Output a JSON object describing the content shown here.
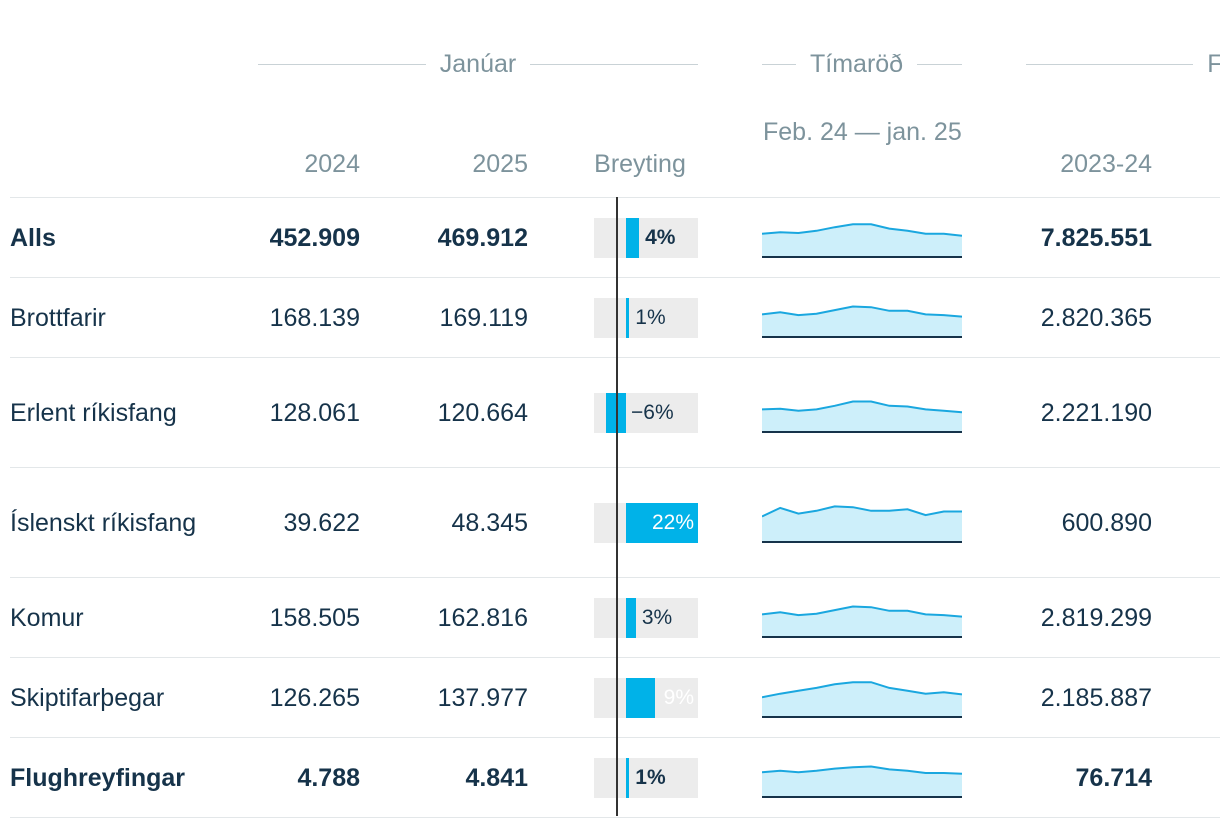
{
  "chart_data": {
    "type": "table",
    "group_headers": {
      "january": "Janúar",
      "timeseries": "Tímaröð",
      "february_partial": "Fel"
    },
    "columns": {
      "y2024": "2024",
      "y2025": "2025",
      "change": "Breyting",
      "timeseries": "Feb. 24 — jan. 25",
      "period": "2023-24"
    },
    "colors": {
      "bar": "#00b2e8",
      "bar_track": "#ececec",
      "spark_fill": "#cdeffa",
      "spark_line": "#1aa7df",
      "text": "#16334a",
      "muted": "#7d939c"
    },
    "change_axis": {
      "min": -10,
      "max": 22
    },
    "rows": [
      {
        "name": "Alls",
        "bold": true,
        "y2024": "452.909",
        "y2025": "469.912",
        "change": 4,
        "change_label": "4%",
        "period": "7.825.551",
        "spark": [
          31,
          33,
          32,
          35,
          40,
          44,
          44,
          38,
          35,
          31,
          31,
          28
        ]
      },
      {
        "name": "Brottfarir",
        "bold": false,
        "y2024": "168.139",
        "y2025": "169.119",
        "change": 1,
        "change_label": "1%",
        "period": "2.820.365",
        "spark": [
          30,
          33,
          29,
          31,
          36,
          41,
          40,
          35,
          35,
          30,
          29,
          27
        ]
      },
      {
        "name": "Erlent ríkisfang",
        "bold": false,
        "y2024": "128.061",
        "y2025": "120.664",
        "change": -6,
        "change_label": "−6%",
        "period": "2.221.190",
        "spark": [
          30,
          31,
          28,
          30,
          35,
          41,
          41,
          35,
          34,
          30,
          28,
          26
        ]
      },
      {
        "name": "Íslenskt ríkisfang",
        "bold": false,
        "y2024": "39.622",
        "y2025": "48.345",
        "change": 22,
        "change_label": "22%",
        "period": "600.890",
        "spark": [
          34,
          46,
          38,
          42,
          48,
          47,
          42,
          42,
          44,
          36,
          41,
          41
        ]
      },
      {
        "name": "Komur",
        "bold": false,
        "y2024": "158.505",
        "y2025": "162.816",
        "change": 3,
        "change_label": "3%",
        "period": "2.819.299",
        "spark": [
          30,
          33,
          29,
          31,
          36,
          41,
          40,
          35,
          35,
          30,
          29,
          27
        ]
      },
      {
        "name": "Skiptifarþegar",
        "bold": false,
        "y2024": "126.265",
        "y2025": "137.977",
        "change": 9,
        "change_label": "9%",
        "period": "2.185.887",
        "spark": [
          26,
          31,
          35,
          39,
          44,
          47,
          47,
          39,
          35,
          31,
          33,
          30
        ]
      },
      {
        "name": "Flughreyfingar",
        "bold": true,
        "y2024": "4.788",
        "y2025": "4.841",
        "change": 1,
        "change_label": "1%",
        "period": "76.714",
        "spark": [
          33,
          35,
          33,
          35,
          38,
          40,
          41,
          37,
          35,
          32,
          32,
          31
        ]
      }
    ]
  }
}
